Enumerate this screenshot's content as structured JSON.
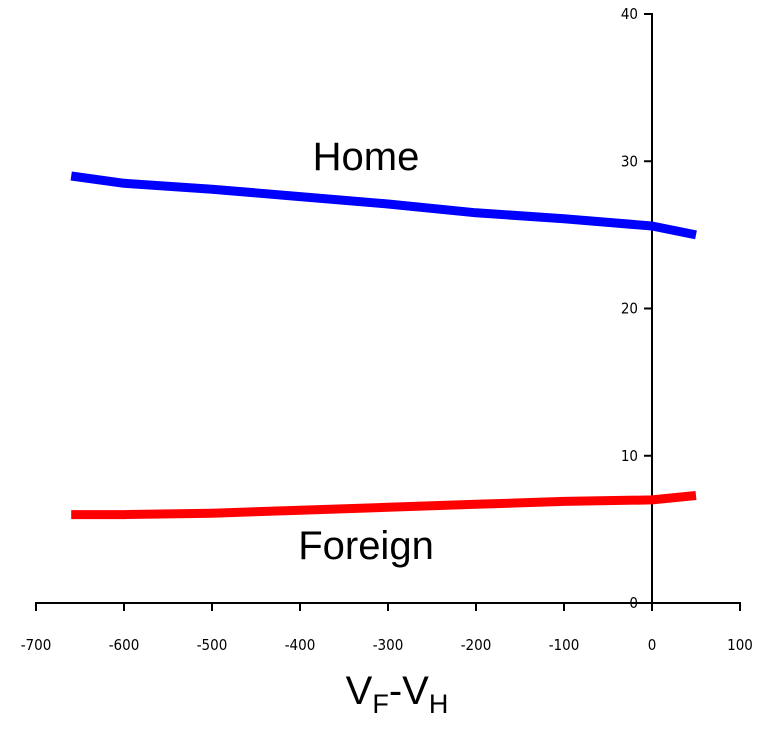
{
  "chart_data": {
    "type": "line",
    "xlim": [
      -700,
      100
    ],
    "ylim": [
      0,
      40
    ],
    "x_ticks": [
      -700,
      -600,
      -500,
      -400,
      -300,
      -200,
      -100,
      0,
      100
    ],
    "y_ticks": [
      0,
      10,
      20,
      30,
      40
    ],
    "x_tick_labels": [
      "-700",
      "-600",
      "-500",
      "-400",
      "-300",
      "-200",
      "-100",
      "0",
      "100"
    ],
    "y_tick_labels": [
      "0",
      "10",
      "20",
      "30",
      "40"
    ],
    "xlabel": {
      "main1": "V",
      "sub1": "F",
      "dash": "-",
      "main2": "V",
      "sub2": "H"
    },
    "grid": false,
    "legend": "none",
    "series": [
      {
        "name": "Home",
        "color": "#0000ff",
        "x": [
          -660,
          -600,
          -500,
          -400,
          -300,
          -200,
          -100,
          0,
          50
        ],
        "y": [
          29.0,
          28.5,
          28.1,
          27.6,
          27.1,
          26.5,
          26.1,
          25.6,
          25.0
        ]
      },
      {
        "name": "Foreign",
        "color": "#ff0000",
        "x": [
          -660,
          -600,
          -500,
          -400,
          -300,
          -200,
          -100,
          0,
          50
        ],
        "y": [
          6.0,
          6.0,
          6.1,
          6.3,
          6.5,
          6.7,
          6.9,
          7.0,
          7.3
        ]
      }
    ]
  }
}
